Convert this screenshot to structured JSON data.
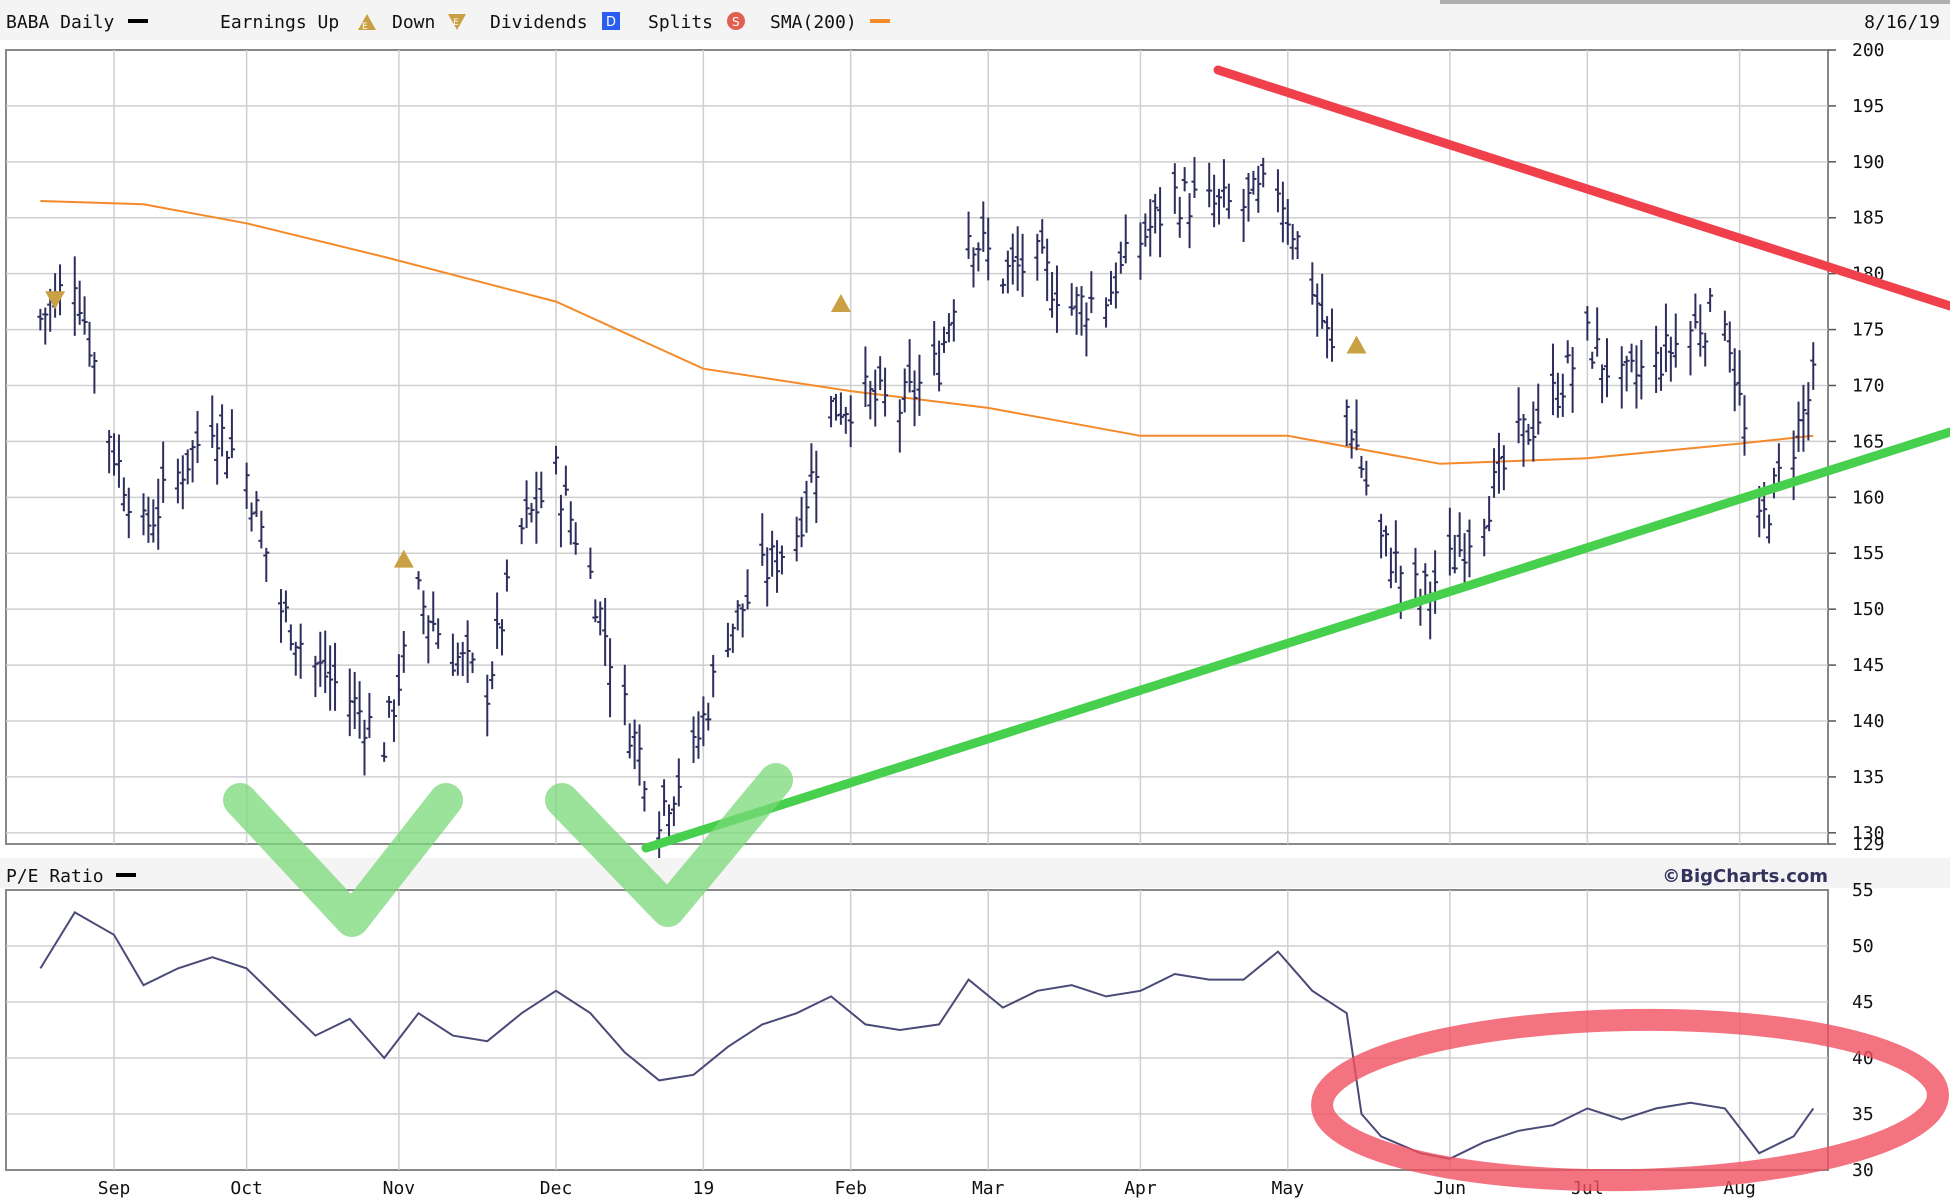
{
  "header": {
    "symbol_label": "BABA Daily",
    "earnings_label": "Earnings Up",
    "down_label": "Down",
    "dividends_label": "Dividends",
    "dividends_icon": "D",
    "splits_label": "Splits",
    "splits_icon": "S",
    "sma_label": "SMA(200)",
    "date": "8/16/19"
  },
  "lower_panel": {
    "title": "P/E Ratio",
    "brand": "©BigCharts.com"
  },
  "colors": {
    "price_bars": "#2e2e5e",
    "sma": "#f58a2a",
    "pe_line": "#4a4a78",
    "grid": "#cfcfcf",
    "earnings_marker": "#c9a043",
    "resistance_annotation": "#f0404c",
    "support_annotation": "#46d04e",
    "checkmark_annotation": "#7ad87a",
    "circle_annotation": "#f05060"
  },
  "chart_data": [
    {
      "type": "bar",
      "subtype": "ohlc",
      "symbol": "BABA",
      "grid": true,
      "ylim": [
        129,
        200
      ],
      "y_ticks": [
        "200",
        "195",
        "190",
        "185",
        "180",
        "175",
        "170",
        "165",
        "160",
        "155",
        "150",
        "145",
        "140",
        "135",
        "130",
        "129"
      ],
      "x_ticks": [
        "Sep",
        "Oct",
        "Nov",
        "Dec",
        "19",
        "Feb",
        "Mar",
        "Apr",
        "May",
        "Jun",
        "Jul",
        "Aug"
      ],
      "close_approx": [
        {
          "date": "2018-08-20",
          "close": 176
        },
        {
          "date": "2018-08-27",
          "close": 180
        },
        {
          "date": "2018-09-04",
          "close": 164
        },
        {
          "date": "2018-09-10",
          "close": 157
        },
        {
          "date": "2018-09-17",
          "close": 162
        },
        {
          "date": "2018-09-24",
          "close": 167
        },
        {
          "date": "2018-10-01",
          "close": 162
        },
        {
          "date": "2018-10-08",
          "close": 150
        },
        {
          "date": "2018-10-15",
          "close": 145
        },
        {
          "date": "2018-10-22",
          "close": 142
        },
        {
          "date": "2018-10-29",
          "close": 138
        },
        {
          "date": "2018-11-05",
          "close": 151
        },
        {
          "date": "2018-11-12",
          "close": 146
        },
        {
          "date": "2018-11-19",
          "close": 143
        },
        {
          "date": "2018-11-26",
          "close": 157
        },
        {
          "date": "2018-12-03",
          "close": 162
        },
        {
          "date": "2018-12-10",
          "close": 153
        },
        {
          "date": "2018-12-17",
          "close": 141
        },
        {
          "date": "2018-12-24",
          "close": 132
        },
        {
          "date": "2018-12-31",
          "close": 137
        },
        {
          "date": "2019-01-07",
          "close": 148
        },
        {
          "date": "2019-01-14",
          "close": 153
        },
        {
          "date": "2019-01-21",
          "close": 157
        },
        {
          "date": "2019-01-28",
          "close": 168
        },
        {
          "date": "2019-02-04",
          "close": 169
        },
        {
          "date": "2019-02-11",
          "close": 168
        },
        {
          "date": "2019-02-19",
          "close": 172
        },
        {
          "date": "2019-02-25",
          "close": 184
        },
        {
          "date": "2019-03-04",
          "close": 180
        },
        {
          "date": "2019-03-11",
          "close": 181
        },
        {
          "date": "2019-03-18",
          "close": 177
        },
        {
          "date": "2019-03-25",
          "close": 178
        },
        {
          "date": "2019-04-01",
          "close": 183
        },
        {
          "date": "2019-04-08",
          "close": 187
        },
        {
          "date": "2019-04-15",
          "close": 186
        },
        {
          "date": "2019-04-22",
          "close": 186
        },
        {
          "date": "2019-04-29",
          "close": 188
        },
        {
          "date": "2019-05-06",
          "close": 179
        },
        {
          "date": "2019-05-13",
          "close": 168
        },
        {
          "date": "2019-05-20",
          "close": 156
        },
        {
          "date": "2019-05-28",
          "close": 151
        },
        {
          "date": "2019-06-03",
          "close": 154
        },
        {
          "date": "2019-06-10",
          "close": 159
        },
        {
          "date": "2019-06-17",
          "close": 165
        },
        {
          "date": "2019-06-24",
          "close": 169
        },
        {
          "date": "2019-07-01",
          "close": 174
        },
        {
          "date": "2019-07-08",
          "close": 170
        },
        {
          "date": "2019-07-15",
          "close": 172
        },
        {
          "date": "2019-07-22",
          "close": 175
        },
        {
          "date": "2019-07-29",
          "close": 177
        },
        {
          "date": "2019-08-05",
          "close": 157
        },
        {
          "date": "2019-08-12",
          "close": 165
        },
        {
          "date": "2019-08-16",
          "close": 170
        }
      ],
      "sma_200_approx": [
        {
          "date": "2018-08-20",
          "value": 186.5
        },
        {
          "date": "2018-09-10",
          "value": 186.2
        },
        {
          "date": "2018-10-01",
          "value": 184.5
        },
        {
          "date": "2018-10-29",
          "value": 181.5
        },
        {
          "date": "2018-12-03",
          "value": 177.5
        },
        {
          "date": "2019-01-02",
          "value": 171.5
        },
        {
          "date": "2019-02-01",
          "value": 169.5
        },
        {
          "date": "2019-03-01",
          "value": 168.0
        },
        {
          "date": "2019-04-01",
          "value": 165.5
        },
        {
          "date": "2019-05-01",
          "value": 165.5
        },
        {
          "date": "2019-06-01",
          "value": 163.0
        },
        {
          "date": "2019-07-01",
          "value": 163.5
        },
        {
          "date": "2019-08-01",
          "value": 164.8
        },
        {
          "date": "2019-08-16",
          "value": 165.5
        }
      ],
      "earnings_markers": [
        {
          "date": "2018-08-23",
          "direction": "down"
        },
        {
          "date": "2018-11-02",
          "direction": "up"
        },
        {
          "date": "2019-01-30",
          "direction": "up"
        },
        {
          "date": "2019-05-15",
          "direction": "up"
        }
      ]
    },
    {
      "type": "line",
      "title": "P/E Ratio",
      "grid": true,
      "ylim": [
        30,
        55
      ],
      "y_ticks": [
        "55",
        "50",
        "45",
        "40",
        "35",
        "30"
      ],
      "x_ticks": [
        "Sep",
        "Oct",
        "Nov",
        "Dec",
        "19",
        "Feb",
        "Mar",
        "Apr",
        "May",
        "Jun",
        "Jul",
        "Aug"
      ],
      "values_approx": [
        {
          "date": "2018-08-20",
          "value": 48
        },
        {
          "date": "2018-08-27",
          "value": 53
        },
        {
          "date": "2018-09-04",
          "value": 51
        },
        {
          "date": "2018-09-10",
          "value": 46.5
        },
        {
          "date": "2018-09-17",
          "value": 48
        },
        {
          "date": "2018-09-24",
          "value": 49
        },
        {
          "date": "2018-10-01",
          "value": 48
        },
        {
          "date": "2018-10-08",
          "value": 45
        },
        {
          "date": "2018-10-15",
          "value": 42
        },
        {
          "date": "2018-10-22",
          "value": 43.5
        },
        {
          "date": "2018-10-29",
          "value": 40
        },
        {
          "date": "2018-11-05",
          "value": 44
        },
        {
          "date": "2018-11-12",
          "value": 42
        },
        {
          "date": "2018-11-19",
          "value": 41.5
        },
        {
          "date": "2018-11-26",
          "value": 44
        },
        {
          "date": "2018-12-03",
          "value": 46
        },
        {
          "date": "2018-12-10",
          "value": 44
        },
        {
          "date": "2018-12-17",
          "value": 40.5
        },
        {
          "date": "2018-12-24",
          "value": 38
        },
        {
          "date": "2018-12-31",
          "value": 38.5
        },
        {
          "date": "2019-01-07",
          "value": 41
        },
        {
          "date": "2019-01-14",
          "value": 43
        },
        {
          "date": "2019-01-21",
          "value": 44
        },
        {
          "date": "2019-01-28",
          "value": 45.5
        },
        {
          "date": "2019-02-04",
          "value": 43
        },
        {
          "date": "2019-02-11",
          "value": 42.5
        },
        {
          "date": "2019-02-19",
          "value": 43
        },
        {
          "date": "2019-02-25",
          "value": 47
        },
        {
          "date": "2019-03-04",
          "value": 44.5
        },
        {
          "date": "2019-03-11",
          "value": 46
        },
        {
          "date": "2019-03-18",
          "value": 46.5
        },
        {
          "date": "2019-03-25",
          "value": 45.5
        },
        {
          "date": "2019-04-01",
          "value": 46
        },
        {
          "date": "2019-04-08",
          "value": 47.5
        },
        {
          "date": "2019-04-15",
          "value": 47
        },
        {
          "date": "2019-04-22",
          "value": 47
        },
        {
          "date": "2019-04-29",
          "value": 49.5
        },
        {
          "date": "2019-05-06",
          "value": 46
        },
        {
          "date": "2019-05-13",
          "value": 44
        },
        {
          "date": "2019-05-16",
          "value": 35
        },
        {
          "date": "2019-05-20",
          "value": 33
        },
        {
          "date": "2019-05-28",
          "value": 31.5
        },
        {
          "date": "2019-06-03",
          "value": 31
        },
        {
          "date": "2019-06-10",
          "value": 32.5
        },
        {
          "date": "2019-06-17",
          "value": 33.5
        },
        {
          "date": "2019-06-24",
          "value": 34
        },
        {
          "date": "2019-07-01",
          "value": 35.5
        },
        {
          "date": "2019-07-08",
          "value": 34.5
        },
        {
          "date": "2019-07-15",
          "value": 35.5
        },
        {
          "date": "2019-07-22",
          "value": 36
        },
        {
          "date": "2019-07-29",
          "value": 35.5
        },
        {
          "date": "2019-08-05",
          "value": 31.5
        },
        {
          "date": "2019-08-12",
          "value": 33
        },
        {
          "date": "2019-08-16",
          "value": 35.5
        }
      ]
    }
  ]
}
